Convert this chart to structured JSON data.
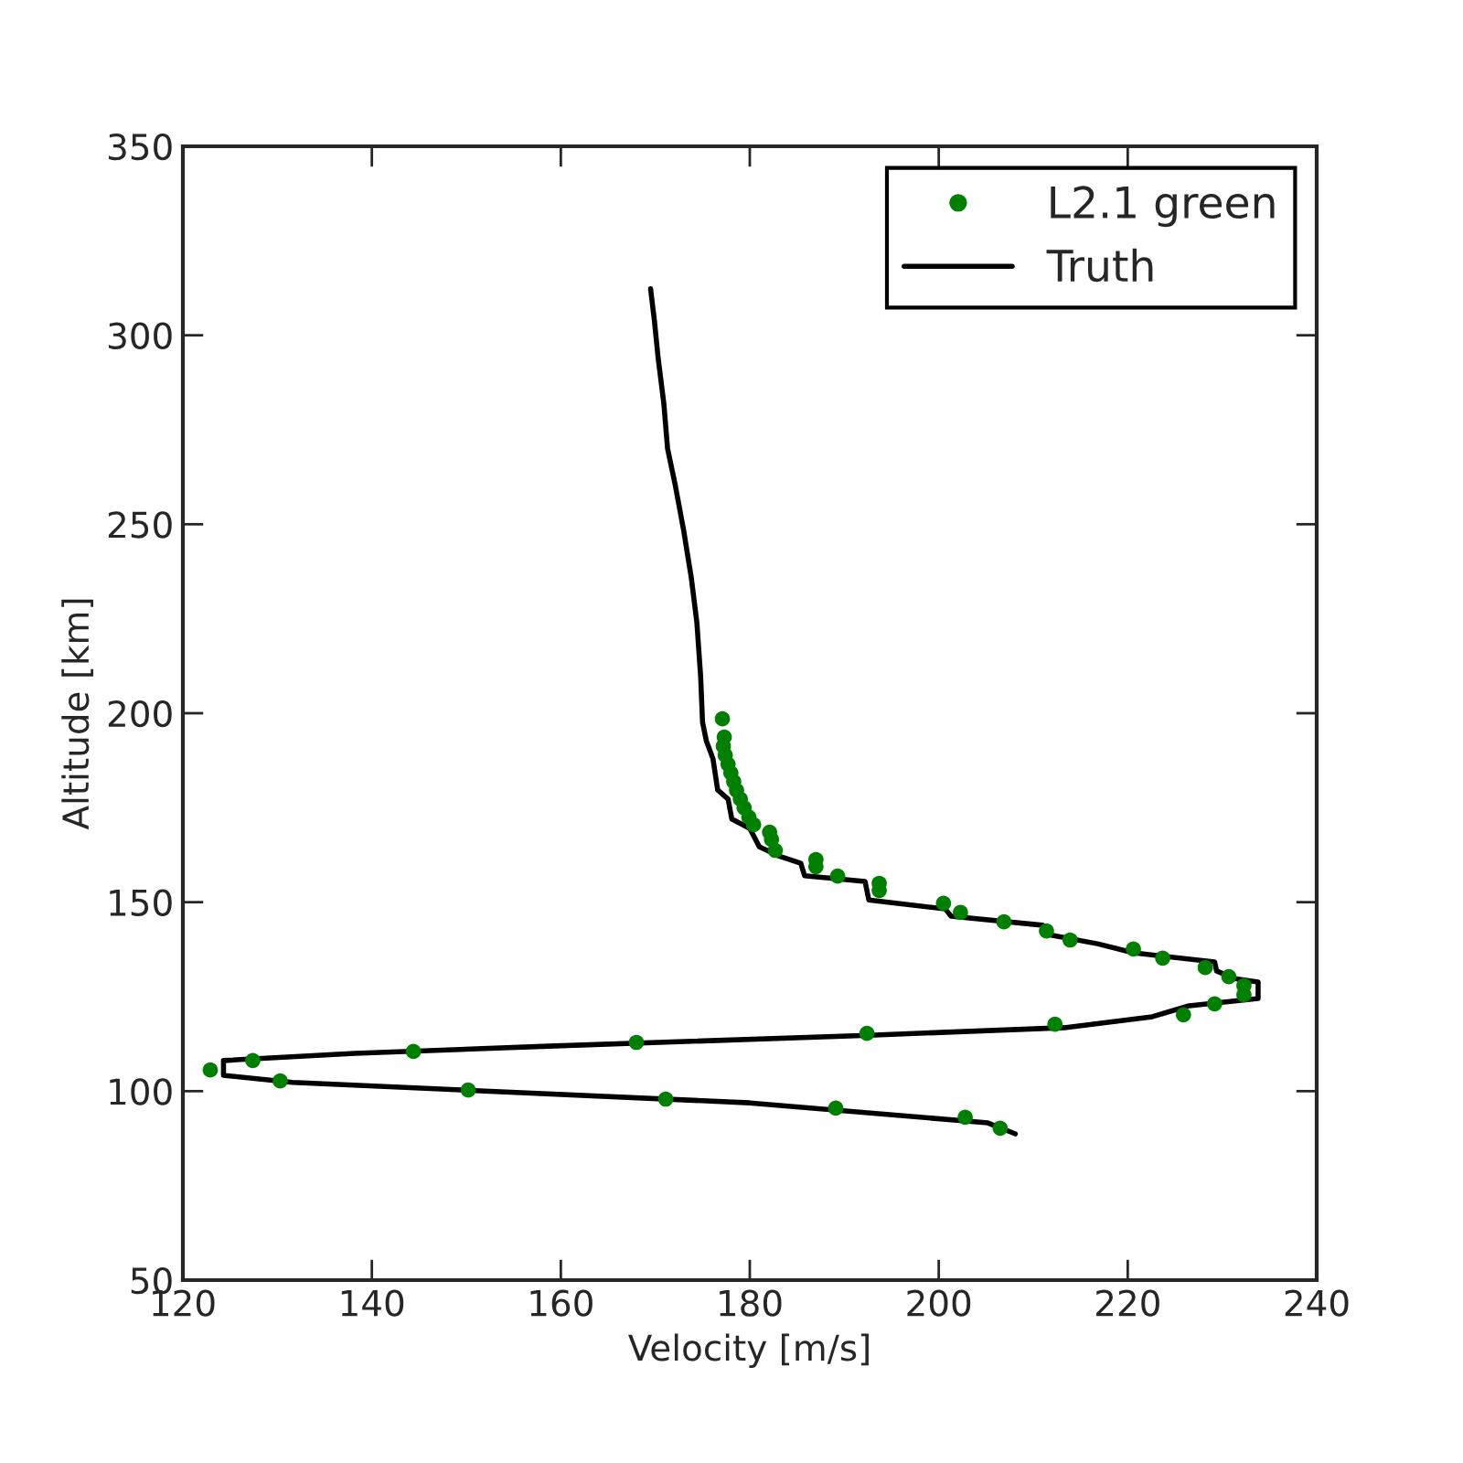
{
  "chart_data": {
    "type": "scatter",
    "xlabel": "Velocity [m/s]",
    "ylabel": "Altitude [km]",
    "xlim": [
      120,
      240
    ],
    "xticks": [
      120,
      140,
      160,
      180,
      200,
      220,
      240
    ],
    "ylim": [
      50,
      350
    ],
    "yticks": [
      50,
      100,
      150,
      200,
      250,
      300,
      350
    ],
    "grid": false,
    "legend": "top right",
    "series": [
      {
        "name": "L2.1 green",
        "marker": "circle",
        "color": "#008000",
        "x": [
          206.5,
          202.8,
          189.1,
          171.1,
          150.2,
          130.3,
          122.9,
          127.4,
          144.4,
          168.0,
          192.4,
          212.3,
          225.9,
          229.2,
          232.3,
          232.3,
          230.7,
          228.2,
          223.7,
          220.6,
          213.9,
          211.4,
          206.9,
          202.3,
          200.5,
          193.7,
          193.7,
          189.3,
          187.0,
          187.0,
          182.7,
          182.3,
          182.1,
          180.4,
          179.9,
          179.4,
          179.0,
          178.6,
          178.3,
          178.0,
          177.7,
          177.4,
          177.2,
          177.3,
          177.1
        ],
        "values": [
          90.2,
          93.1,
          95.5,
          97.9,
          100.3,
          102.7,
          105.6,
          108.1,
          110.5,
          112.9,
          115.3,
          117.7,
          120.2,
          123.1,
          125.5,
          127.9,
          130.3,
          132.7,
          135.2,
          137.6,
          140.0,
          142.4,
          144.8,
          147.3,
          149.7,
          153.1,
          155.0,
          156.9,
          159.4,
          161.3,
          163.7,
          166.6,
          168.5,
          170.5,
          172.5,
          175.0,
          177.3,
          179.6,
          181.9,
          184.2,
          186.5,
          188.9,
          191.3,
          193.7,
          198.5
        ]
      },
      {
        "name": "Truth",
        "type": "line",
        "marker": "none",
        "line_style": "solid",
        "color": "#000000",
        "x": [
          169.5,
          169.9,
          170.3,
          170.9,
          171.3,
          172.1,
          173.0,
          173.8,
          174.4,
          174.8,
          175.0,
          175.4,
          176.1,
          176.6,
          177.7,
          178.1,
          180.0,
          181.0,
          183.0,
          185.4,
          185.8,
          192.2,
          192.6,
          200.7,
          201.3,
          211.0,
          211.4,
          216.8,
          220.6,
          229.2,
          229.4,
          231.3,
          233.8,
          233.8,
          226.5,
          222.6,
          213.3,
          192.6,
          158.7,
          138.2,
          124.3,
          124.3,
          131.6,
          180.0,
          205.2,
          208.1
        ],
        "values": [
          312.3,
          304,
          294,
          282,
          270,
          260.5,
          248.4,
          236,
          224,
          209.7,
          197.6,
          192.7,
          188,
          179.7,
          177.3,
          172,
          169.5,
          164.7,
          162.3,
          160.3,
          157,
          155.5,
          150.6,
          148.2,
          146.3,
          143.9,
          141.5,
          139,
          136.6,
          134.2,
          131.8,
          129.8,
          128.9,
          124.5,
          122.6,
          119.7,
          116.8,
          114.8,
          111.9,
          110,
          108.1,
          104.2,
          102.3,
          96.9,
          91.6,
          88.7
        ]
      }
    ]
  }
}
